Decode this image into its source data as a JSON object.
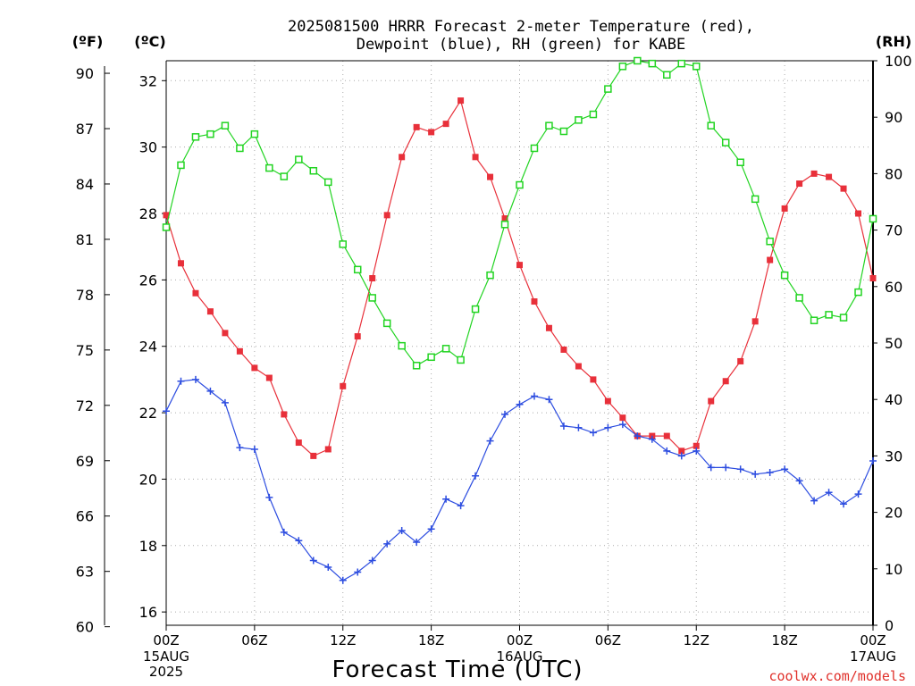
{
  "title_line1": "2025081500 HRRR Forecast 2-meter Temperature (red),",
  "title_line2": "Dewpoint (blue), RH (green) for KABE",
  "credit": "coolwx.com/models",
  "chart_data": {
    "type": "line",
    "xlabel": "Forecast Time (UTC)",
    "x_hours": [
      0,
      1,
      2,
      3,
      4,
      5,
      6,
      7,
      8,
      9,
      10,
      11,
      12,
      13,
      14,
      15,
      16,
      17,
      18,
      19,
      20,
      21,
      22,
      23,
      24,
      25,
      26,
      27,
      28,
      29,
      30,
      31,
      32,
      33,
      34,
      35,
      36,
      37,
      38,
      39,
      40,
      41,
      42,
      43,
      44,
      45,
      46,
      47,
      48
    ],
    "x_ticks": [
      {
        "hour": 0,
        "label": "00Z",
        "sub1": "15AUG",
        "sub2": "2025"
      },
      {
        "hour": 6,
        "label": "06Z",
        "sub1": "",
        "sub2": ""
      },
      {
        "hour": 12,
        "label": "12Z",
        "sub1": "",
        "sub2": ""
      },
      {
        "hour": 18,
        "label": "18Z",
        "sub1": "",
        "sub2": ""
      },
      {
        "hour": 24,
        "label": "00Z",
        "sub1": "16AUG",
        "sub2": ""
      },
      {
        "hour": 30,
        "label": "06Z",
        "sub1": "",
        "sub2": ""
      },
      {
        "hour": 36,
        "label": "12Z",
        "sub1": "",
        "sub2": ""
      },
      {
        "hour": 42,
        "label": "18Z",
        "sub1": "",
        "sub2": ""
      },
      {
        "hour": 48,
        "label": "00Z",
        "sub1": "17AUG",
        "sub2": ""
      }
    ],
    "xlim": [
      0,
      48
    ],
    "c_axis": {
      "label": "(ºC)",
      "ylim": [
        15.6,
        32.6
      ],
      "ticks": [
        16,
        18,
        20,
        22,
        24,
        26,
        28,
        30,
        32
      ]
    },
    "f_axis": {
      "label": "(ºF)",
      "ticks": [
        60,
        63,
        66,
        69,
        72,
        75,
        78,
        81,
        84,
        87,
        90
      ]
    },
    "rh_axis": {
      "label": "(RH)",
      "ylim": [
        0,
        100
      ],
      "ticks": [
        0,
        10,
        20,
        30,
        40,
        50,
        60,
        70,
        80,
        90,
        100
      ]
    },
    "grid": true,
    "series": [
      {
        "axis": "c",
        "color": "#e8303a",
        "marker": "filled-square",
        "values": [
          27.95,
          26.5,
          25.6,
          25.05,
          24.4,
          23.85,
          23.35,
          23.05,
          21.95,
          21.1,
          20.7,
          20.9,
          22.8,
          24.3,
          26.05,
          27.95,
          29.7,
          30.6,
          30.45,
          30.7,
          31.4,
          29.7,
          29.1,
          27.85,
          26.45,
          25.35,
          24.55,
          23.9,
          23.4,
          23.0,
          22.35,
          21.85,
          21.3,
          21.3,
          21.3,
          20.85,
          21.0,
          22.35,
          22.95,
          23.55,
          24.75,
          26.6,
          28.15,
          28.9,
          29.2,
          29.1,
          28.75,
          28.0,
          26.05
        ]
      },
      {
        "axis": "c",
        "color": "#2d4de0",
        "marker": "plus",
        "values": [
          22.05,
          22.95,
          23.0,
          22.65,
          22.3,
          20.95,
          20.9,
          19.45,
          18.4,
          18.15,
          17.55,
          17.35,
          16.95,
          17.2,
          17.55,
          18.05,
          18.45,
          18.1,
          18.5,
          19.4,
          19.2,
          20.1,
          21.15,
          21.95,
          22.25,
          22.5,
          22.4,
          21.6,
          21.55,
          21.4,
          21.55,
          21.65,
          21.3,
          21.2,
          20.85,
          20.7,
          20.85,
          20.35,
          20.35,
          20.3,
          20.15,
          20.2,
          20.3,
          19.95,
          19.35,
          19.6,
          19.25,
          19.55,
          20.55
        ]
      },
      {
        "axis": "rh",
        "color": "#22d422",
        "marker": "open-square",
        "values": [
          70.5,
          81.5,
          86.5,
          87,
          88.5,
          84.5,
          87,
          81,
          79.5,
          82.5,
          80.5,
          78.5,
          67.5,
          63,
          58,
          53.5,
          49.5,
          46,
          47.5,
          49,
          47,
          56,
          62,
          71,
          78,
          84.5,
          88.5,
          87.5,
          89.5,
          90.5,
          95,
          99,
          100,
          99.5,
          97.5,
          99.5,
          99,
          88.5,
          85.5,
          82,
          75.5,
          68,
          62,
          58,
          54,
          55,
          54.5,
          59,
          72
        ]
      }
    ]
  }
}
